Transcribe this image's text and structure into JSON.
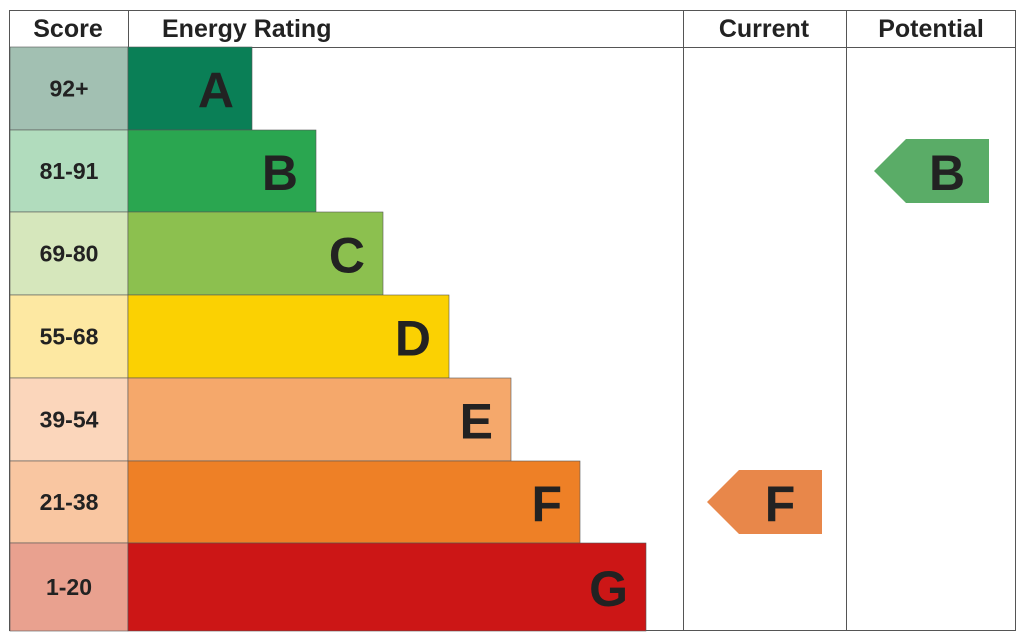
{
  "header": {
    "score": "Score",
    "rating": "Energy Rating",
    "current": "Current",
    "potential": "Potential"
  },
  "bands": [
    {
      "score": "92+",
      "letter": "A",
      "color": "#0a7f56",
      "score_color": "#a2c0b2"
    },
    {
      "score": "81-91",
      "letter": "B",
      "color": "#2aa650",
      "score_color": "#b1dcbd"
    },
    {
      "score": "69-80",
      "letter": "C",
      "color": "#8cc04f",
      "score_color": "#d6e7bc"
    },
    {
      "score": "55-68",
      "letter": "D",
      "color": "#fbd102",
      "score_color": "#fde8a2"
    },
    {
      "score": "39-54",
      "letter": "E",
      "color": "#f5a86b",
      "score_color": "#fbd6bb"
    },
    {
      "score": "21-38",
      "letter": "F",
      "color": "#ee8026",
      "score_color": "#f9c6a1"
    },
    {
      "score": "1-20",
      "letter": "G",
      "color": "#cc1616",
      "score_color": "#e9a18f"
    }
  ],
  "current": {
    "letter": "F",
    "color": "#e8874a"
  },
  "potential": {
    "letter": "B",
    "color": "#5aac67"
  }
}
